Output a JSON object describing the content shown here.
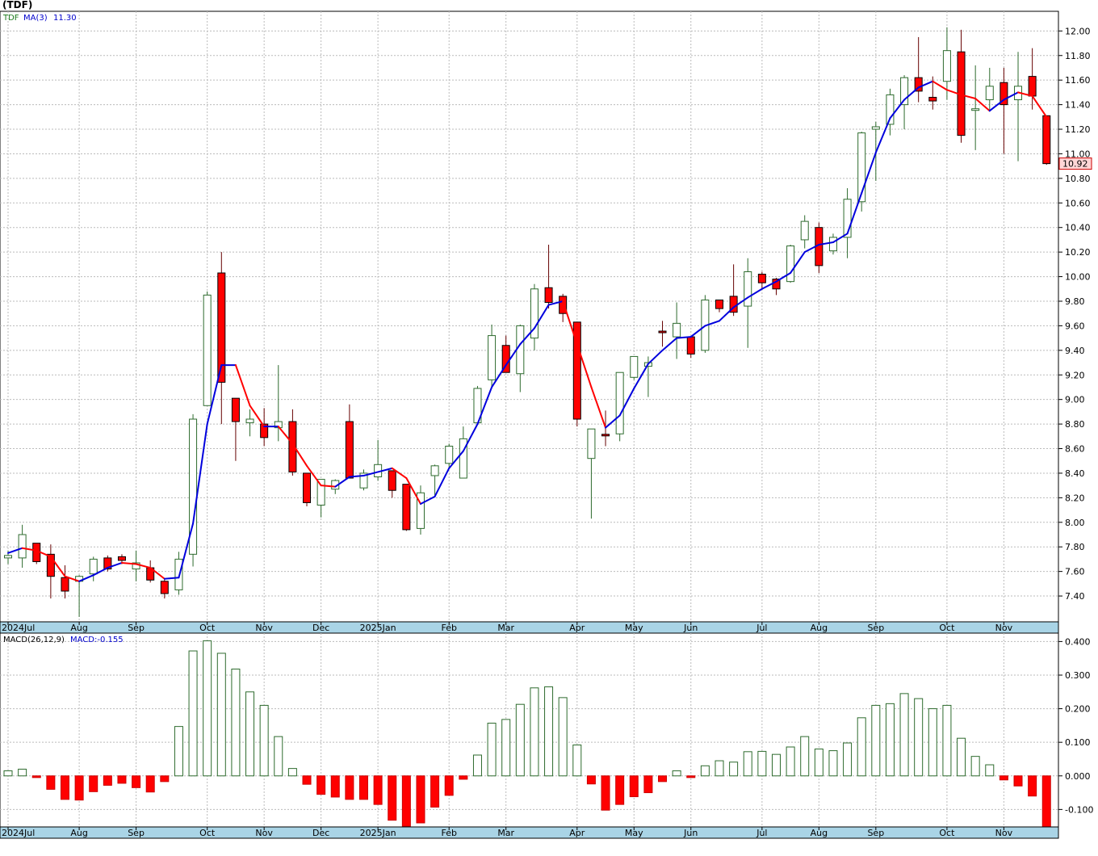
{
  "chart_data": [
    {
      "type": "candlestick",
      "title": "(TDF)",
      "legend": {
        "symbol": "TDF",
        "ma_label": "MA(3)",
        "ma_value": "11.30"
      },
      "colors": {
        "up_body": "#ffffff",
        "up_edge": "#2e6b2e",
        "down_body": "#ff0000",
        "ma_rising": "#0000dd",
        "ma_falling": "#ff0000",
        "grid": "#bbbbbb",
        "axis_band": "#a9d4e6"
      },
      "y_ticks": [
        "7.40",
        "7.60",
        "7.80",
        "8.00",
        "8.20",
        "8.40",
        "8.60",
        "8.80",
        "9.00",
        "9.20",
        "9.40",
        "9.60",
        "9.80",
        "10.00",
        "10.20",
        "10.40",
        "10.60",
        "10.80",
        "11.00",
        "11.20",
        "11.40",
        "11.60",
        "11.80",
        "12.00"
      ],
      "ylim": [
        7.19,
        12.16
      ],
      "last_price": "10.92",
      "x_labels": [
        {
          "label": "2024Jul",
          "i": 0
        },
        {
          "label": "Aug",
          "i": 5
        },
        {
          "label": "Sep",
          "i": 9
        },
        {
          "label": "Oct",
          "i": 14
        },
        {
          "label": "Nov",
          "i": 18
        },
        {
          "label": "Dec",
          "i": 22
        },
        {
          "label": "2025Jan",
          "i": 26
        },
        {
          "label": "Feb",
          "i": 31
        },
        {
          "label": "Mar",
          "i": 35
        },
        {
          "label": "Apr",
          "i": 40
        },
        {
          "label": "May",
          "i": 44
        },
        {
          "label": "Jun",
          "i": 48
        },
        {
          "label": "Jul",
          "i": 53
        },
        {
          "label": "Aug",
          "i": 57
        },
        {
          "label": "Sep",
          "i": 61
        },
        {
          "label": "Oct",
          "i": 66
        },
        {
          "label": "Nov",
          "i": 70
        }
      ],
      "candles": [
        {
          "o": 7.71,
          "h": 7.77,
          "l": 7.66,
          "c": 7.73
        },
        {
          "o": 7.71,
          "h": 7.98,
          "l": 7.63,
          "c": 7.9
        },
        {
          "o": 7.83,
          "h": 7.83,
          "l": 7.66,
          "c": 7.68
        },
        {
          "o": 7.74,
          "h": 7.82,
          "l": 7.38,
          "c": 7.56
        },
        {
          "o": 7.55,
          "h": 7.65,
          "l": 7.38,
          "c": 7.44
        },
        {
          "o": 7.52,
          "h": 7.57,
          "l": 7.23,
          "c": 7.56
        },
        {
          "o": 7.58,
          "h": 7.72,
          "l": 7.52,
          "c": 7.7
        },
        {
          "o": 7.71,
          "h": 7.73,
          "l": 7.6,
          "c": 7.62
        },
        {
          "o": 7.72,
          "h": 7.74,
          "l": 7.66,
          "c": 7.69
        },
        {
          "o": 7.62,
          "h": 7.77,
          "l": 7.52,
          "c": 7.67
        },
        {
          "o": 7.63,
          "h": 7.69,
          "l": 7.51,
          "c": 7.53
        },
        {
          "o": 7.52,
          "h": 7.54,
          "l": 7.38,
          "c": 7.42
        },
        {
          "o": 7.45,
          "h": 7.76,
          "l": 7.41,
          "c": 7.7
        },
        {
          "o": 7.74,
          "h": 8.88,
          "l": 7.64,
          "c": 8.84
        },
        {
          "o": 8.95,
          "h": 9.88,
          "l": 8.95,
          "c": 9.85
        },
        {
          "o": 10.03,
          "h": 10.2,
          "l": 8.8,
          "c": 9.14
        },
        {
          "o": 9.01,
          "h": 9.01,
          "l": 8.5,
          "c": 8.82
        },
        {
          "o": 8.81,
          "h": 8.92,
          "l": 8.7,
          "c": 8.84
        },
        {
          "o": 8.8,
          "h": 8.93,
          "l": 8.62,
          "c": 8.69
        },
        {
          "o": 8.77,
          "h": 9.28,
          "l": 8.66,
          "c": 8.82
        },
        {
          "o": 8.82,
          "h": 8.92,
          "l": 8.38,
          "c": 8.41
        },
        {
          "o": 8.4,
          "h": 8.4,
          "l": 8.13,
          "c": 8.16
        },
        {
          "o": 8.14,
          "h": 8.35,
          "l": 8.04,
          "c": 8.35
        },
        {
          "o": 8.27,
          "h": 8.35,
          "l": 8.23,
          "c": 8.34
        },
        {
          "o": 8.82,
          "h": 8.96,
          "l": 8.36,
          "c": 8.36
        },
        {
          "o": 8.28,
          "h": 8.43,
          "l": 8.26,
          "c": 8.4
        },
        {
          "o": 8.37,
          "h": 8.67,
          "l": 8.34,
          "c": 8.47
        },
        {
          "o": 8.42,
          "h": 8.42,
          "l": 8.2,
          "c": 8.26
        },
        {
          "o": 8.31,
          "h": 8.31,
          "l": 7.93,
          "c": 7.94
        },
        {
          "o": 7.95,
          "h": 8.3,
          "l": 7.9,
          "c": 8.24
        },
        {
          "o": 8.38,
          "h": 8.47,
          "l": 8.22,
          "c": 8.46
        },
        {
          "o": 8.48,
          "h": 8.64,
          "l": 8.44,
          "c": 8.62
        },
        {
          "o": 8.36,
          "h": 8.78,
          "l": 8.36,
          "c": 8.68
        },
        {
          "o": 8.81,
          "h": 9.11,
          "l": 8.8,
          "c": 9.09
        },
        {
          "o": 9.16,
          "h": 9.61,
          "l": 9.11,
          "c": 9.52
        },
        {
          "o": 9.44,
          "h": 9.52,
          "l": 9.22,
          "c": 9.22
        },
        {
          "o": 9.21,
          "h": 9.61,
          "l": 9.06,
          "c": 9.6
        },
        {
          "o": 9.5,
          "h": 9.94,
          "l": 9.4,
          "c": 9.9
        },
        {
          "o": 9.91,
          "h": 10.26,
          "l": 9.74,
          "c": 9.79
        },
        {
          "o": 9.84,
          "h": 9.86,
          "l": 9.63,
          "c": 9.7
        },
        {
          "o": 9.63,
          "h": 9.63,
          "l": 8.78,
          "c": 8.84
        },
        {
          "o": 8.52,
          "h": 8.74,
          "l": 8.03,
          "c": 8.76
        },
        {
          "o": 8.71,
          "h": 8.91,
          "l": 8.62,
          "c": 8.7
        },
        {
          "o": 8.72,
          "h": 9.22,
          "l": 8.66,
          "c": 9.22
        },
        {
          "o": 9.18,
          "h": 9.35,
          "l": 9.16,
          "c": 9.35
        },
        {
          "o": 9.27,
          "h": 9.35,
          "l": 9.02,
          "c": 9.3
        },
        {
          "o": 9.55,
          "h": 9.64,
          "l": 9.43,
          "c": 9.54
        },
        {
          "o": 9.51,
          "h": 9.79,
          "l": 9.33,
          "c": 9.62
        },
        {
          "o": 9.51,
          "h": 9.51,
          "l": 9.34,
          "c": 9.37
        },
        {
          "o": 9.4,
          "h": 9.85,
          "l": 9.38,
          "c": 9.81
        },
        {
          "o": 9.81,
          "h": 9.81,
          "l": 9.71,
          "c": 9.74
        },
        {
          "o": 9.84,
          "h": 10.1,
          "l": 9.68,
          "c": 9.71
        },
        {
          "o": 9.76,
          "h": 10.15,
          "l": 9.42,
          "c": 10.04
        },
        {
          "o": 10.02,
          "h": 10.04,
          "l": 9.9,
          "c": 9.95
        },
        {
          "o": 9.98,
          "h": 9.99,
          "l": 9.85,
          "c": 9.9
        },
        {
          "o": 9.96,
          "h": 10.26,
          "l": 9.95,
          "c": 10.25
        },
        {
          "o": 10.3,
          "h": 10.5,
          "l": 10.23,
          "c": 10.45
        },
        {
          "o": 10.4,
          "h": 10.44,
          "l": 10.03,
          "c": 10.09
        },
        {
          "o": 10.21,
          "h": 10.35,
          "l": 10.18,
          "c": 10.32
        },
        {
          "o": 10.32,
          "h": 10.72,
          "l": 10.15,
          "c": 10.63
        },
        {
          "o": 10.61,
          "h": 11.18,
          "l": 10.53,
          "c": 11.17
        },
        {
          "o": 11.2,
          "h": 11.26,
          "l": 10.78,
          "c": 11.22
        },
        {
          "o": 11.24,
          "h": 11.53,
          "l": 11.15,
          "c": 11.48
        },
        {
          "o": 11.4,
          "h": 11.64,
          "l": 11.2,
          "c": 11.62
        },
        {
          "o": 11.62,
          "h": 11.95,
          "l": 11.42,
          "c": 11.51
        },
        {
          "o": 11.46,
          "h": 11.63,
          "l": 11.36,
          "c": 11.43
        },
        {
          "o": 11.59,
          "h": 12.03,
          "l": 11.44,
          "c": 11.84
        },
        {
          "o": 11.83,
          "h": 12.01,
          "l": 11.09,
          "c": 11.15
        },
        {
          "o": 11.35,
          "h": 11.72,
          "l": 11.03,
          "c": 11.36
        },
        {
          "o": 11.44,
          "h": 11.7,
          "l": 11.35,
          "c": 11.55
        },
        {
          "o": 11.58,
          "h": 11.7,
          "l": 11.0,
          "c": 11.4
        },
        {
          "o": 11.44,
          "h": 11.83,
          "l": 10.94,
          "c": 11.55
        },
        {
          "o": 11.63,
          "h": 11.86,
          "l": 11.36,
          "c": 11.47
        },
        {
          "o": 11.31,
          "h": 11.31,
          "l": 10.91,
          "c": 10.92
        }
      ],
      "ma3": [
        7.75,
        7.79,
        7.77,
        7.72,
        7.56,
        7.52,
        7.57,
        7.63,
        7.67,
        7.66,
        7.63,
        7.54,
        7.55,
        7.99,
        8.8,
        9.28,
        9.28,
        8.95,
        8.78,
        8.78,
        8.64,
        8.46,
        8.3,
        8.29,
        8.37,
        8.38,
        8.41,
        8.44,
        8.36,
        8.15,
        8.21,
        8.44,
        8.58,
        8.8,
        9.1,
        9.28,
        9.45,
        9.58,
        9.77,
        9.8,
        9.45,
        9.1,
        8.77,
        8.87,
        9.09,
        9.29,
        9.4,
        9.5,
        9.51,
        9.6,
        9.64,
        9.75,
        9.83,
        9.9,
        9.96,
        10.03,
        10.2,
        10.26,
        10.28,
        10.35,
        10.68,
        11.01,
        11.29,
        11.44,
        11.54,
        11.59,
        11.52,
        11.48,
        11.45,
        11.35,
        11.44,
        11.5,
        11.47,
        11.3
      ]
    },
    {
      "type": "bar",
      "title": "MACD(26,12,9)",
      "legend": {
        "label": "MACD(26,12,9)",
        "macd_label": "MACD:-0.155"
      },
      "y_ticks": [
        "-0.100",
        "0.000",
        "0.100",
        "0.200",
        "0.300",
        "0.400"
      ],
      "ylim": [
        -0.152,
        0.425
      ],
      "x_labels": [
        {
          "label": "2024Jul",
          "i": 0
        },
        {
          "label": "Aug",
          "i": 5
        },
        {
          "label": "Sep",
          "i": 9
        },
        {
          "label": "Oct",
          "i": 14
        },
        {
          "label": "Nov",
          "i": 18
        },
        {
          "label": "Dec",
          "i": 22
        },
        {
          "label": "2025Jan",
          "i": 26
        },
        {
          "label": "Feb",
          "i": 31
        },
        {
          "label": "Mar",
          "i": 35
        },
        {
          "label": "Apr",
          "i": 40
        },
        {
          "label": "May",
          "i": 44
        },
        {
          "label": "Jun",
          "i": 48
        },
        {
          "label": "Jul",
          "i": 53
        },
        {
          "label": "Aug",
          "i": 57
        },
        {
          "label": "Sep",
          "i": 61
        },
        {
          "label": "Oct",
          "i": 66
        },
        {
          "label": "Nov",
          "i": 70
        }
      ],
      "values": [
        0.015,
        0.02,
        -0.005,
        -0.04,
        -0.07,
        -0.072,
        -0.047,
        -0.028,
        -0.022,
        -0.035,
        -0.048,
        -0.017,
        0.147,
        0.372,
        0.402,
        0.365,
        0.318,
        0.25,
        0.21,
        0.117,
        0.022,
        -0.025,
        -0.055,
        -0.063,
        -0.07,
        -0.07,
        -0.085,
        -0.132,
        -0.15,
        -0.14,
        -0.093,
        -0.058,
        -0.01,
        0.062,
        0.157,
        0.168,
        0.213,
        0.262,
        0.265,
        0.233,
        0.092,
        -0.024,
        -0.102,
        -0.085,
        -0.062,
        -0.05,
        -0.017,
        0.015,
        -0.005,
        0.03,
        0.045,
        0.041,
        0.072,
        0.073,
        0.064,
        0.086,
        0.117,
        0.08,
        0.075,
        0.098,
        0.173,
        0.21,
        0.215,
        0.245,
        0.23,
        0.2,
        0.21,
        0.112,
        0.058,
        0.033,
        -0.012,
        -0.03,
        -0.06,
        -0.155
      ]
    }
  ]
}
